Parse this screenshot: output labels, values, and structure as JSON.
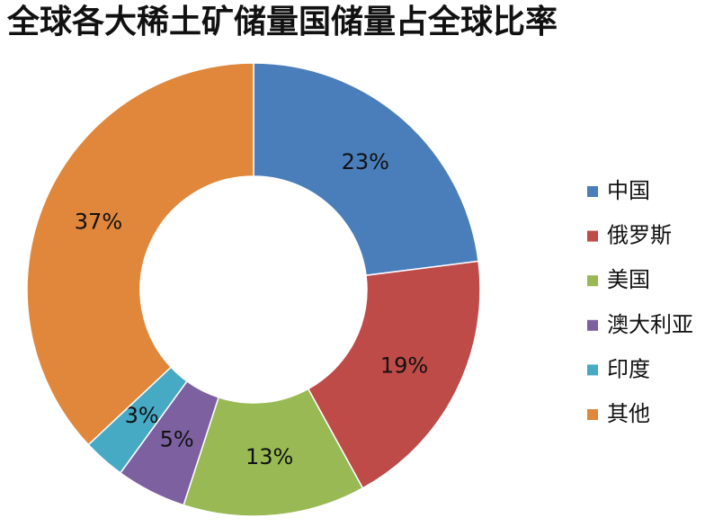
{
  "chart_data": {
    "type": "donut",
    "title": "全球各大稀土矿储量国储量占全球比率",
    "categories": [
      "中国",
      "俄罗斯",
      "美国",
      "澳大利亚",
      "印度",
      "其他"
    ],
    "values": [
      23,
      19,
      13,
      5,
      3,
      37
    ],
    "value_labels": [
      "23%",
      "19%",
      "13%",
      "5%",
      "3%",
      "37%"
    ],
    "colors": [
      "#4a7ebb",
      "#be4b48",
      "#98b954",
      "#7d60a0",
      "#46aac5",
      "#e0873b"
    ],
    "legend": "right"
  }
}
